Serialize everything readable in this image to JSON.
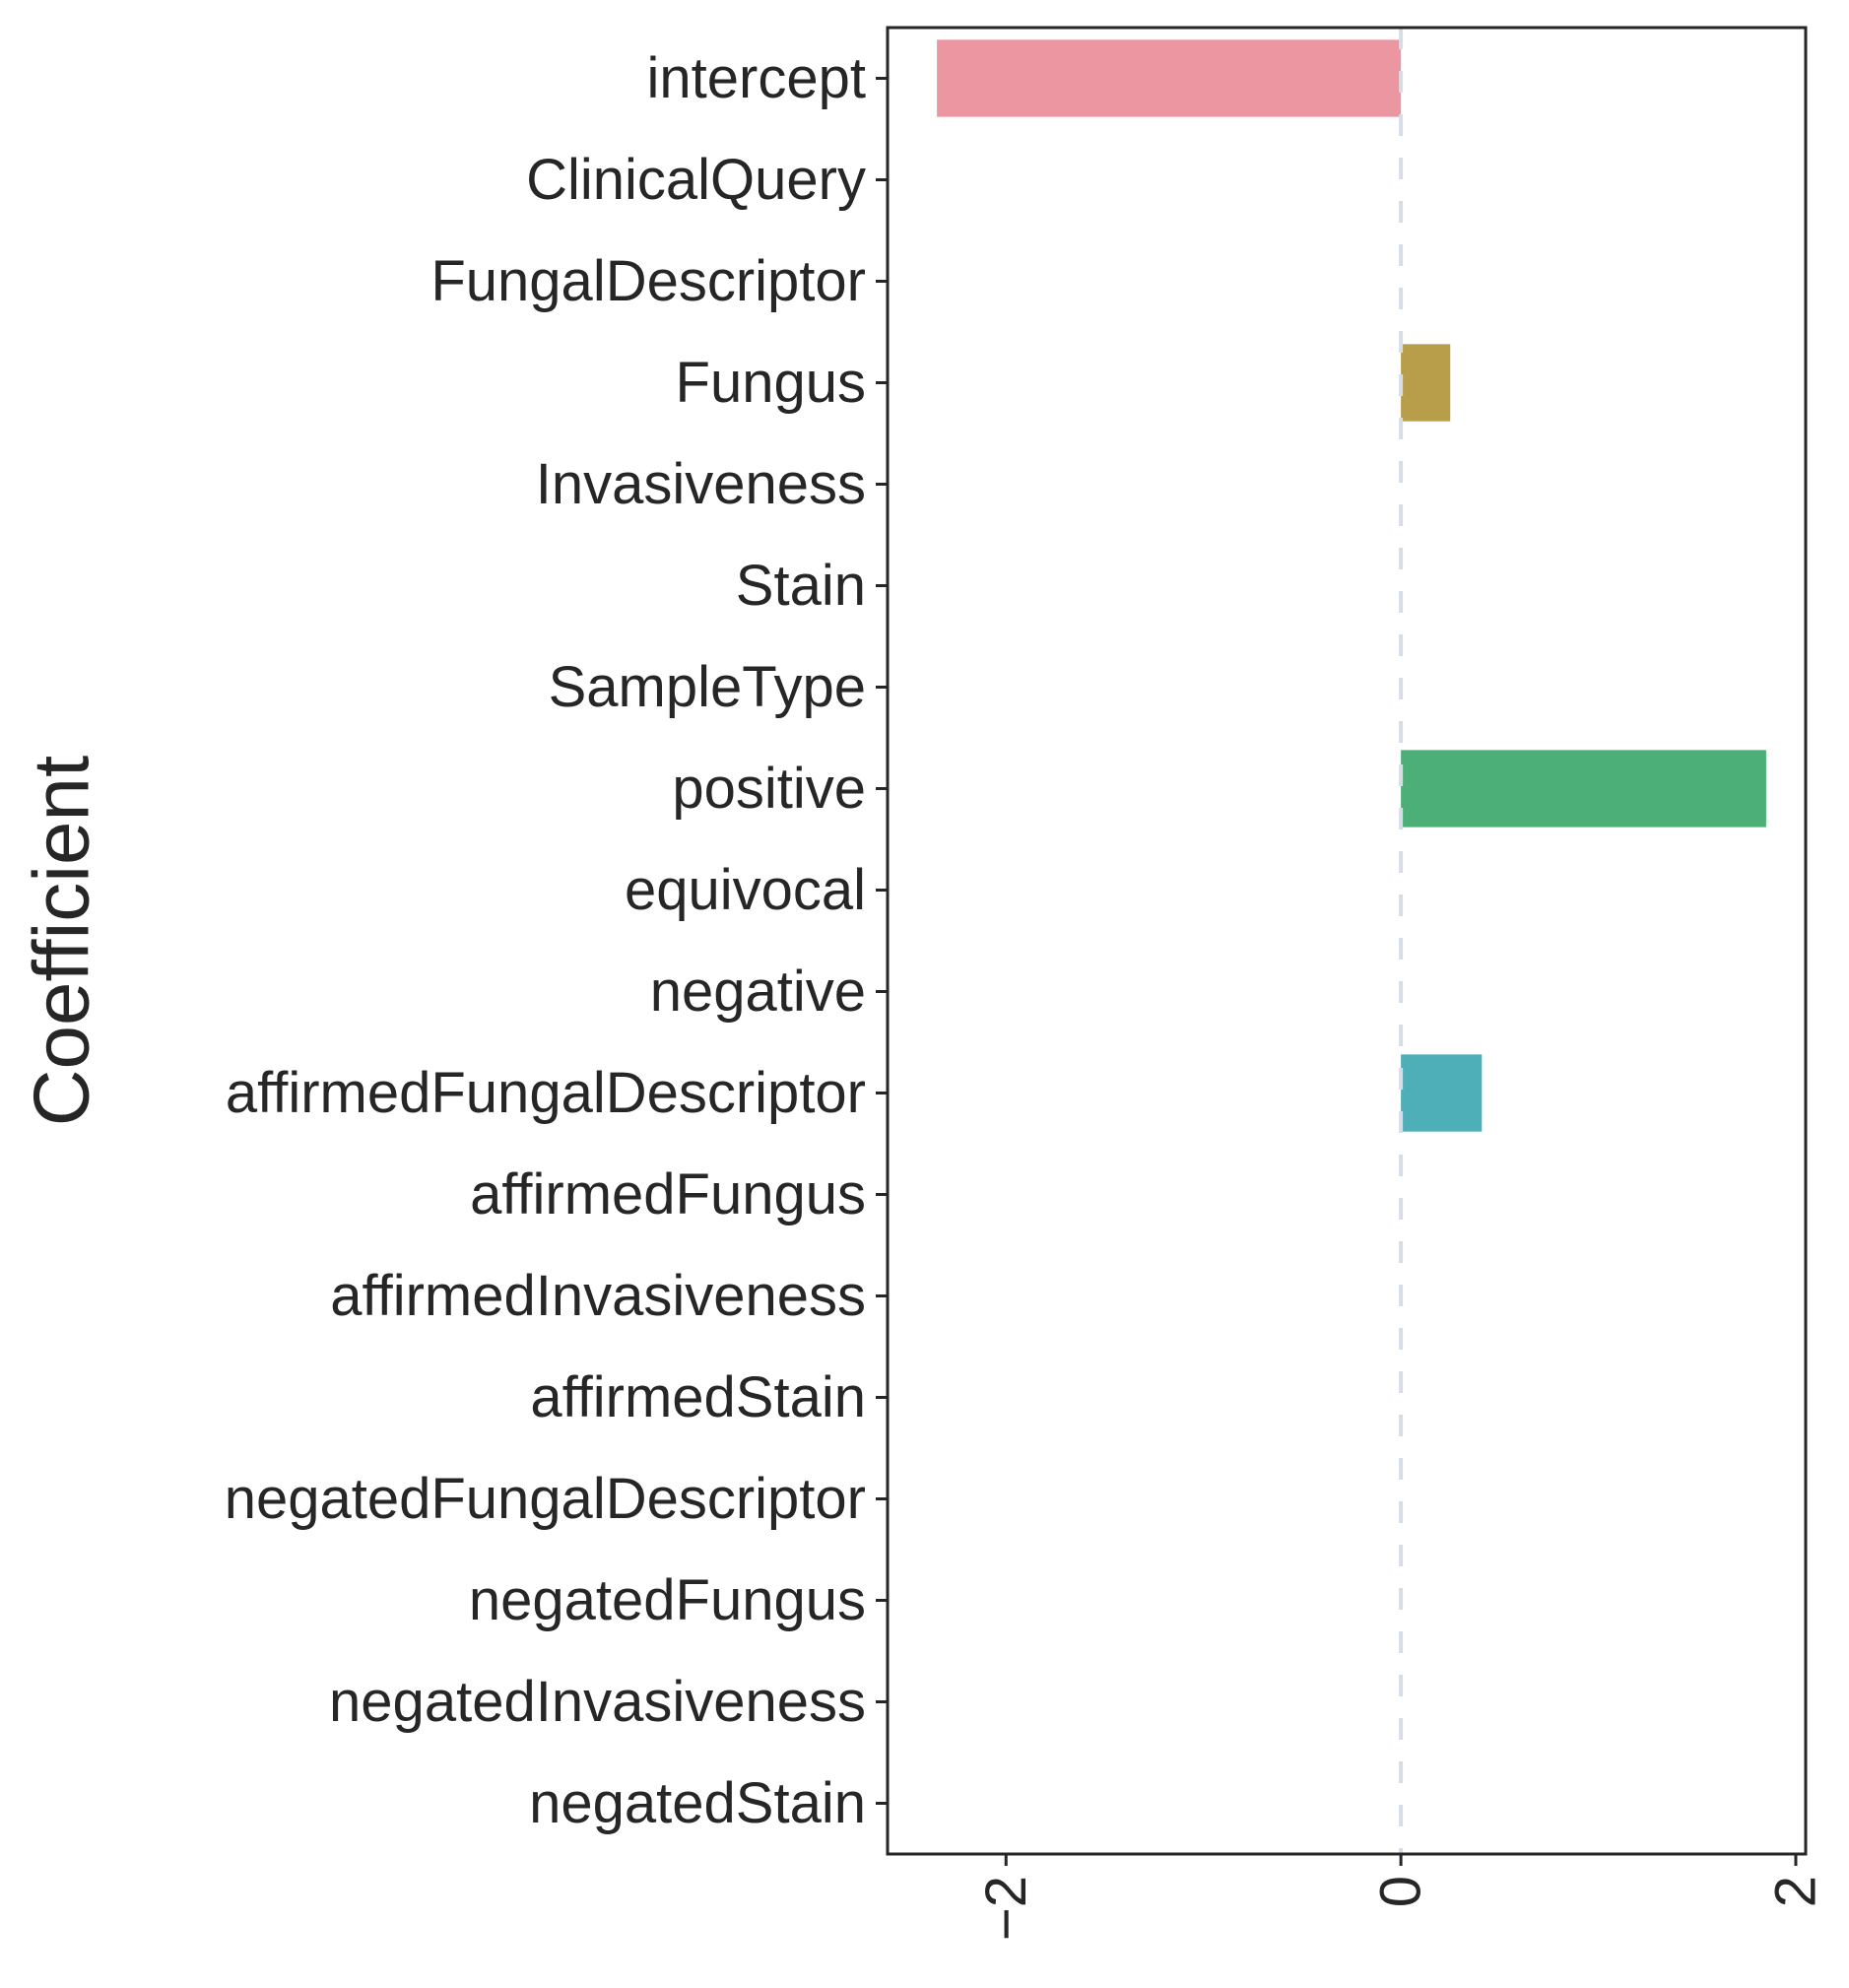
{
  "chart_data": {
    "type": "bar",
    "orientation": "horizontal",
    "title": "",
    "xlabel": "",
    "ylabel": "Coefficient",
    "categories": [
      "intercept",
      "ClinicalQuery",
      "FungalDescriptor",
      "Fungus",
      "Invasiveness",
      "Stain",
      "SampleType",
      "positive",
      "equivocal",
      "negative",
      "affirmedFungalDescriptor",
      "affirmedFungus",
      "affirmedInvasiveness",
      "affirmedStain",
      "negatedFungalDescriptor",
      "negatedFungus",
      "negatedInvasiveness",
      "negatedStain"
    ],
    "values": [
      -2.35,
      0,
      0,
      0.25,
      0,
      0,
      0,
      1.85,
      0,
      0,
      0.41,
      0,
      0,
      0,
      0,
      0,
      0,
      0
    ],
    "colors": [
      "#eb96a0",
      "#e79a86",
      "#d7a572",
      "#b89d4a",
      "#b5a24d",
      "#a6ad4c",
      "#86b34f",
      "#4caf77",
      "#4eb08c",
      "#4fb09e",
      "#4fafb8",
      "#4fb0c5",
      "#5aa9d2",
      "#7da2de",
      "#a497df",
      "#c48fdf",
      "#dd89cd",
      "#e38dba"
    ],
    "xlim": [
      -2.6,
      2.05
    ],
    "xticks": [
      {
        "value": -2,
        "label": "−2"
      },
      {
        "value": 0,
        "label": "0"
      },
      {
        "value": 2,
        "label": "2"
      }
    ],
    "reference_line": {
      "value": 0,
      "style": "dashed",
      "color": "#d5dde6"
    },
    "grid": false,
    "xtick_rotation": "vertical"
  }
}
